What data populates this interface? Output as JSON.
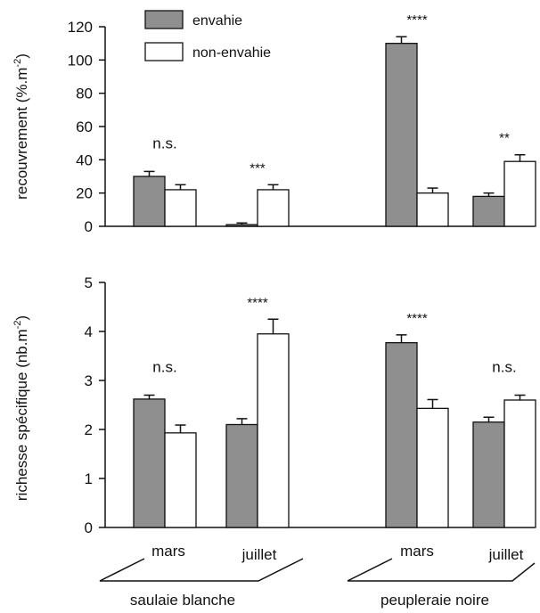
{
  "chart_data": [
    {
      "type": "bar",
      "ylabel": "recouvrement (%.m",
      "ylabel_sup": "-2",
      "ylabel_close": ")",
      "ylim": [
        0,
        120
      ],
      "yticks": [
        "0",
        "20",
        "40",
        "60",
        "80",
        "100",
        "120"
      ],
      "grid": false,
      "legend_position": "top-left",
      "groups": [
        {
          "site": "saulaie blanche",
          "month": "mars",
          "envahie": 30,
          "envahie_err": 3,
          "non_envahie": 22,
          "non_envahie_err": 3,
          "significance": "n.s."
        },
        {
          "site": "saulaie blanche",
          "month": "juillet",
          "envahie": 1,
          "envahie_err": 1,
          "non_envahie": 22,
          "non_envahie_err": 3,
          "significance": "***"
        },
        {
          "site": "peupleraie noire",
          "month": "mars",
          "envahie": 110,
          "envahie_err": 4,
          "non_envahie": 20,
          "non_envahie_err": 3,
          "significance": "****"
        },
        {
          "site": "peupleraie noire",
          "month": "juillet",
          "envahie": 18,
          "envahie_err": 2,
          "non_envahie": 39,
          "non_envahie_err": 4,
          "significance": "**"
        }
      ]
    },
    {
      "type": "bar",
      "ylabel": "richesse spécifique (nb.m",
      "ylabel_sup": "-2",
      "ylabel_close": ")",
      "ylim": [
        0,
        5
      ],
      "yticks": [
        "0",
        "1",
        "2",
        "3",
        "4",
        "5"
      ],
      "grid": false,
      "groups": [
        {
          "site": "saulaie blanche",
          "month": "mars",
          "envahie": 2.62,
          "envahie_err": 0.08,
          "non_envahie": 1.93,
          "non_envahie_err": 0.16,
          "significance": "n.s."
        },
        {
          "site": "saulaie blanche",
          "month": "juillet",
          "envahie": 2.1,
          "envahie_err": 0.12,
          "non_envahie": 3.95,
          "non_envahie_err": 0.3,
          "significance": "****"
        },
        {
          "site": "peupleraie noire",
          "month": "mars",
          "envahie": 3.77,
          "envahie_err": 0.16,
          "non_envahie": 2.43,
          "non_envahie_err": 0.18,
          "significance": "****"
        },
        {
          "site": "peupleraie noire",
          "month": "juillet",
          "envahie": 2.15,
          "envahie_err": 0.1,
          "non_envahie": 2.6,
          "non_envahie_err": 0.1,
          "significance": "n.s."
        }
      ]
    }
  ],
  "legend": [
    {
      "label": "envahie",
      "color": "#8f8f8f"
    },
    {
      "label": "non-envahie",
      "color": "#ffffff"
    }
  ],
  "x_labels": {
    "months": [
      "mars",
      "juillet",
      "mars",
      "juillet"
    ],
    "sites": [
      "saulaie blanche",
      "peupleraie noire"
    ]
  },
  "colors": {
    "envahie": "#8f8f8f",
    "non_envahie": "#ffffff",
    "stroke": "#111111"
  }
}
